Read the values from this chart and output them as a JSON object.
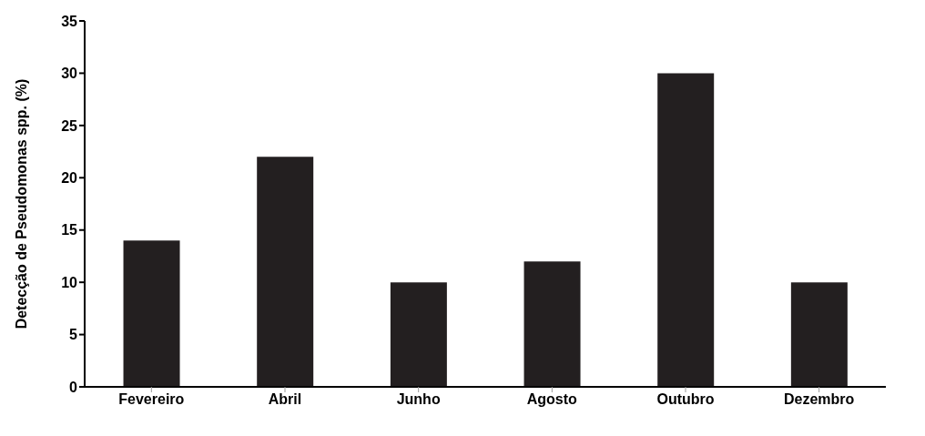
{
  "chart_data": {
    "type": "bar",
    "ylabel": "Detecção de Pseudomonas spp. (%)",
    "categories": [
      "Fevereiro",
      "Abril",
      "Junho",
      "Agosto",
      "Outubro",
      "Dezembro"
    ],
    "values": [
      14,
      22,
      10,
      12,
      30,
      10
    ],
    "color": "#231f20",
    "ylim": [
      0,
      35
    ],
    "yticks": [
      0,
      5,
      10,
      15,
      20,
      25,
      30,
      35
    ],
    "grid": false
  }
}
